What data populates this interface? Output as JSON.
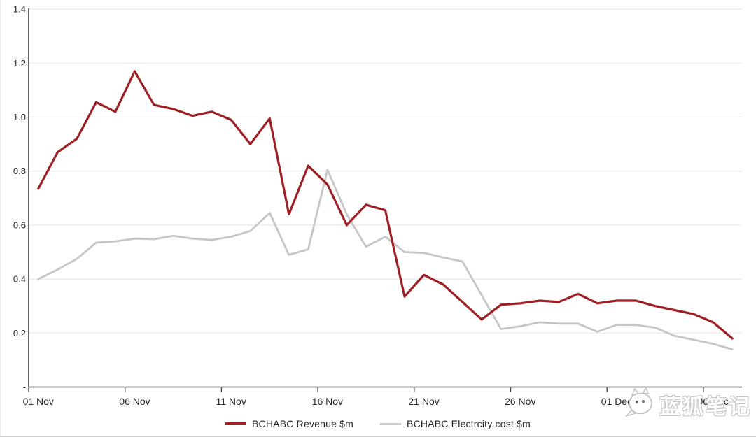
{
  "watermark": {
    "text": "蓝狐笔记",
    "icon": "fox-logo"
  },
  "legend": {
    "position": "bottom"
  },
  "chart_data": {
    "type": "line",
    "title": "",
    "xlabel": "",
    "ylabel": "",
    "ylim": [
      0,
      1.4
    ],
    "y_tick_step": 0.2,
    "grid": true,
    "legend_position": "bottom",
    "y_tick_labels": [
      "-",
      "0.2",
      "0.4",
      "0.6",
      "0.8",
      "1.0",
      "1.2",
      "1.4"
    ],
    "x_tick_labels": [
      "01 Nov",
      "06 Nov",
      "11 Nov",
      "16 Nov",
      "21 Nov",
      "26 Nov",
      "01 Dec",
      "06 Dec"
    ],
    "x_tick_every": 5,
    "colors": {
      "grid": "#e7e5e5",
      "axis": "#3f3f3f",
      "tick_text": "#262626",
      "background": "#ffffff"
    },
    "categories": [
      "01 Nov",
      "02 Nov",
      "03 Nov",
      "04 Nov",
      "05 Nov",
      "06 Nov",
      "07 Nov",
      "08 Nov",
      "09 Nov",
      "10 Nov",
      "11 Nov",
      "12 Nov",
      "13 Nov",
      "14 Nov",
      "15 Nov",
      "16 Nov",
      "17 Nov",
      "18 Nov",
      "19 Nov",
      "20 Nov",
      "21 Nov",
      "22 Nov",
      "23 Nov",
      "24 Nov",
      "25 Nov",
      "26 Nov",
      "27 Nov",
      "28 Nov",
      "29 Nov",
      "30 Nov",
      "01 Dec",
      "02 Dec",
      "03 Dec",
      "04 Dec",
      "05 Dec",
      "06 Dec",
      "07 Dec"
    ],
    "series": [
      {
        "name": "BCHABC Revenue $m",
        "color": "#9e1f24",
        "stroke_width": 3.2,
        "values": [
          0.735,
          0.87,
          0.92,
          1.055,
          1.02,
          1.17,
          1.045,
          1.03,
          1.005,
          1.02,
          0.99,
          0.9,
          0.995,
          0.64,
          0.82,
          0.75,
          0.6,
          0.675,
          0.655,
          0.335,
          0.415,
          0.38,
          0.315,
          0.25,
          0.305,
          0.31,
          0.32,
          0.315,
          0.345,
          0.31,
          0.32,
          0.32,
          0.3,
          0.285,
          0.27,
          0.24,
          0.18
        ]
      },
      {
        "name": "BCHABC Electrcity cost $m",
        "color": "#c6c6c6",
        "stroke_width": 2.8,
        "values": [
          0.4,
          0.435,
          0.475,
          0.535,
          0.54,
          0.55,
          0.548,
          0.56,
          0.55,
          0.545,
          0.557,
          0.578,
          0.645,
          0.49,
          0.51,
          0.805,
          0.64,
          0.52,
          0.557,
          0.5,
          0.497,
          0.48,
          0.465,
          0.34,
          0.215,
          0.225,
          0.24,
          0.235,
          0.235,
          0.205,
          0.23,
          0.23,
          0.22,
          0.19,
          0.175,
          0.16,
          0.14
        ]
      }
    ]
  }
}
